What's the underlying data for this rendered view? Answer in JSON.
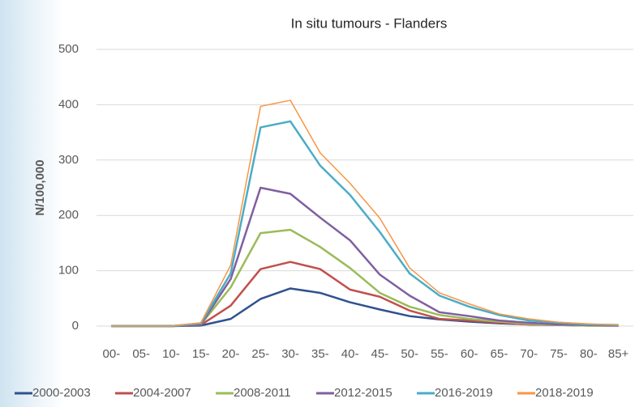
{
  "chart_data": {
    "type": "line",
    "title": "In situ tumours - Flanders",
    "y_label": "N/100,000",
    "categories": [
      "00-",
      "05-",
      "10-",
      "15-",
      "20-",
      "25-",
      "30-",
      "35-",
      "40-",
      "45-",
      "50-",
      "55-",
      "60-",
      "65-",
      "70-",
      "75-",
      "80-",
      "85+"
    ],
    "series": [
      {
        "name": "2000-2003",
        "color": "#2f528f",
        "values": [
          0,
          0,
          0,
          1,
          13,
          49,
          68,
          60,
          43,
          30,
          18,
          12,
          8,
          5,
          3,
          2,
          1,
          1
        ]
      },
      {
        "name": "2004-2007",
        "color": "#c0504d",
        "values": [
          0,
          0,
          0,
          2,
          37,
          103,
          116,
          103,
          66,
          53,
          28,
          13,
          10,
          6,
          3,
          2,
          1,
          1
        ]
      },
      {
        "name": "2008-2011",
        "color": "#9bbb59",
        "values": [
          0,
          0,
          0,
          3,
          70,
          168,
          174,
          143,
          105,
          60,
          35,
          20,
          13,
          8,
          4,
          2,
          1,
          1
        ]
      },
      {
        "name": "2012-2015",
        "color": "#7f5fa0",
        "values": [
          0,
          0,
          0,
          3,
          85,
          250,
          239,
          196,
          155,
          93,
          55,
          25,
          18,
          10,
          6,
          3,
          2,
          1
        ]
      },
      {
        "name": "2016-2019",
        "color": "#4bacc6",
        "values": [
          0,
          0,
          0,
          5,
          95,
          359,
          370,
          290,
          237,
          170,
          95,
          55,
          35,
          20,
          10,
          6,
          3,
          2
        ]
      },
      {
        "name": "2018-2019",
        "color": "#f79646",
        "values": [
          0,
          0,
          0,
          6,
          110,
          397,
          408,
          313,
          258,
          195,
          105,
          60,
          40,
          22,
          13,
          7,
          4,
          2
        ]
      }
    ],
    "ylim": [
      0,
      500
    ],
    "yticks": [
      0,
      100,
      200,
      300,
      400,
      500
    ],
    "grid": true,
    "legend": "bottom"
  }
}
